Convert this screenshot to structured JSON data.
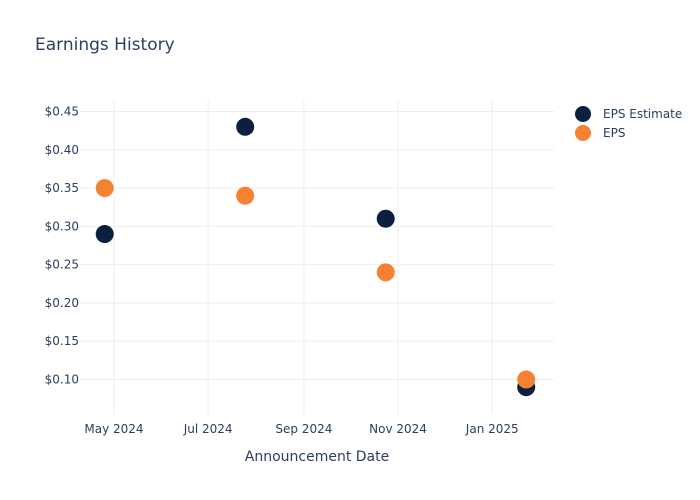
{
  "chart_data": {
    "type": "scatter",
    "title": "Earnings History",
    "xlabel": "Announcement Date",
    "ylabel": "",
    "x_ticks": [
      "May 2024",
      "Jul 2024",
      "Sep 2024",
      "Nov 2024",
      "Jan 2025"
    ],
    "y_ticks": [
      "$0.10",
      "$0.15",
      "$0.20",
      "$0.25",
      "$0.30",
      "$0.35",
      "$0.40",
      "$0.45"
    ],
    "xlim": [
      "2024-04-09",
      "2025-02-10"
    ],
    "ylim": [
      0.055,
      0.465
    ],
    "grid": true,
    "legend_position": "top-right",
    "x": [
      "2024-04-25",
      "2024-07-25",
      "2024-10-24",
      "2025-01-23"
    ],
    "series": [
      {
        "name": "EPS Estimate",
        "color": "#0b1f3f",
        "values": [
          0.29,
          0.43,
          0.31,
          0.09
        ]
      },
      {
        "name": "EPS",
        "color": "#f58232",
        "values": [
          0.35,
          0.34,
          0.24,
          0.1
        ]
      }
    ]
  }
}
